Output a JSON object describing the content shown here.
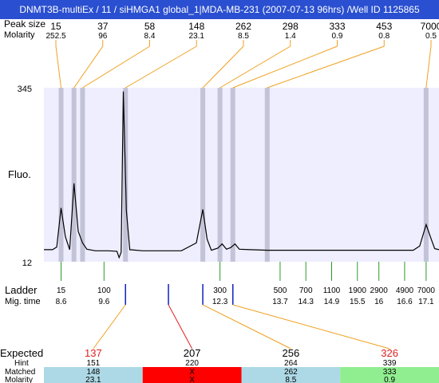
{
  "title": "DNMT3B-multiEx / 11 / siHMGA1 global_1|MDA-MB-231 (2007-07-13 96hrs) /Well ID 1125865",
  "colors": {
    "title_bg": "#2a4fd0",
    "plot_bg": "#eeeeff",
    "peak_band": "#c3c3d8",
    "annotation_line": "#f0a020",
    "ladder_tick": "#2a9a2a",
    "expected_tick": "#1020c0",
    "expected_missing": "#e02020",
    "row_blue": "#add8e6",
    "row_red": "#ff0000",
    "row_green": "#90ee90"
  },
  "chart_data": {
    "type": "line",
    "ylabel": "Fluo.",
    "ylim": [
      12,
      345
    ],
    "ytick_labels": [
      "345",
      "12"
    ],
    "x_range": [
      8.2,
      17.4
    ],
    "peak_header_labels": {
      "size": "Peak size",
      "molarity": "Molarity"
    },
    "peaks": [
      {
        "size": "15",
        "molarity": "252.5",
        "time": 8.6
      },
      {
        "size": "37",
        "molarity": "96",
        "time": 8.9
      },
      {
        "size": "58",
        "molarity": "8.4",
        "time": 9.1
      },
      {
        "size": "148",
        "molarity": "23.1",
        "time": 10.1
      },
      {
        "size": "262",
        "molarity": "8.5",
        "time": 11.9
      },
      {
        "size": "298",
        "molarity": "1.4",
        "time": 12.3
      },
      {
        "size": "333",
        "molarity": "0.9",
        "time": 12.6
      },
      {
        "size": "453",
        "molarity": "0.8",
        "time": 13.4
      },
      {
        "size": "7000",
        "molarity": "0.5",
        "time": 17.1
      }
    ],
    "trace": [
      [
        8.2,
        35
      ],
      [
        8.4,
        35
      ],
      [
        8.5,
        40
      ],
      [
        8.6,
        115
      ],
      [
        8.7,
        60
      ],
      [
        8.8,
        35
      ],
      [
        8.9,
        162
      ],
      [
        9.0,
        70
      ],
      [
        9.1,
        48
      ],
      [
        9.2,
        36
      ],
      [
        9.4,
        33
      ],
      [
        9.7,
        33
      ],
      [
        9.9,
        32
      ],
      [
        9.95,
        20
      ],
      [
        10.0,
        30
      ],
      [
        10.05,
        338
      ],
      [
        10.12,
        110
      ],
      [
        10.2,
        35
      ],
      [
        10.5,
        33
      ],
      [
        11.0,
        33
      ],
      [
        11.4,
        33
      ],
      [
        11.75,
        48
      ],
      [
        11.9,
        112
      ],
      [
        12.0,
        55
      ],
      [
        12.1,
        34
      ],
      [
        12.25,
        38
      ],
      [
        12.35,
        46
      ],
      [
        12.45,
        36
      ],
      [
        12.55,
        39
      ],
      [
        12.65,
        46
      ],
      [
        12.75,
        36
      ],
      [
        13.0,
        35
      ],
      [
        13.4,
        34
      ],
      [
        14.0,
        34
      ],
      [
        15.0,
        34
      ],
      [
        16.0,
        34
      ],
      [
        16.8,
        34
      ],
      [
        16.95,
        42
      ],
      [
        17.1,
        83
      ],
      [
        17.22,
        55
      ],
      [
        17.3,
        37
      ],
      [
        17.4,
        35
      ]
    ],
    "ladder": {
      "label": "Ladder",
      "time_label": "Mig. time",
      "entries": [
        {
          "size": "15",
          "time": "8.6"
        },
        {
          "size": "100",
          "time": "9.6"
        },
        {
          "size": "300",
          "time": "12.3"
        },
        {
          "size": "500",
          "time": "13.7"
        },
        {
          "size": "700",
          "time": "14.3"
        },
        {
          "size": "1100",
          "time": "14.9"
        },
        {
          "size": "1900",
          "time": "15.5"
        },
        {
          "size": "2900",
          "time": "16"
        },
        {
          "size": "4900",
          "time": "16.6"
        },
        {
          "size": "7000",
          "time": "17.1"
        }
      ]
    },
    "expected": {
      "labels": {
        "expected": "Expected",
        "hint": "Hint",
        "matched": "Matched",
        "molarity": "Molarity"
      },
      "items": [
        {
          "expected": "137",
          "hint": "151",
          "matched": "148",
          "molarity": "23.1",
          "status": "found",
          "expected_color": "red",
          "row_color": "blue",
          "time": 10.1
        },
        {
          "expected": "207",
          "hint": "220",
          "matched": "X",
          "molarity": "X",
          "status": "missing",
          "expected_color": "black",
          "row_color": "red",
          "time": 11.1
        },
        {
          "expected": "256",
          "hint": "264",
          "matched": "262",
          "molarity": "8.5",
          "status": "found",
          "expected_color": "black",
          "row_color": "blue",
          "time": 11.9
        },
        {
          "expected": "326",
          "hint": "339",
          "matched": "333",
          "molarity": "0.9",
          "status": "found",
          "expected_color": "red",
          "row_color": "green",
          "time": 12.6
        }
      ]
    }
  }
}
